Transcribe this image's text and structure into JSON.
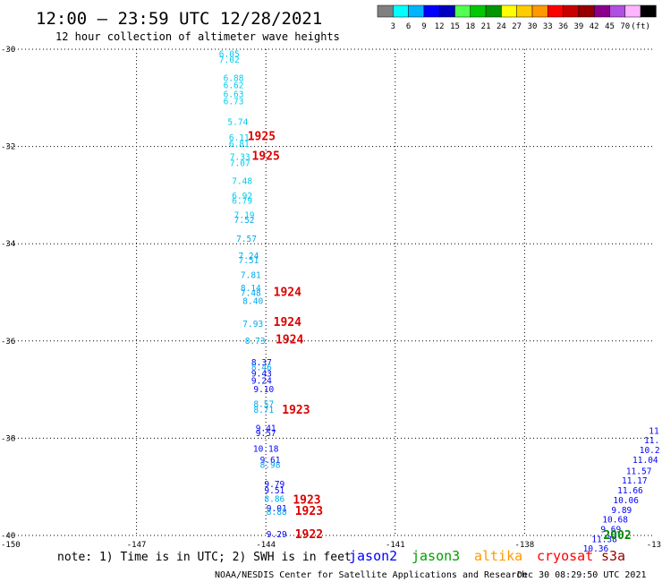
{
  "chart_data": {
    "type": "scatter",
    "title": "12:00 — 23:59 UTC 12/28/2021",
    "subtitle": "12 hour collection of altimeter wave heights",
    "xlim": [
      -150,
      -135
    ],
    "ylim": [
      -40,
      -30
    ],
    "x_ticks": [
      "-147",
      "-144",
      "-141",
      "-138"
    ],
    "x_edge_labels": [
      "-150",
      "-13"
    ],
    "y_ticks": [
      "-30",
      "-32",
      "-34",
      "-36",
      "-38",
      "-40"
    ],
    "grid": "dotted",
    "legend": {
      "colors": [
        "#808080",
        "#00ffff",
        "#00b4ff",
        "#0000ff",
        "#0000c0",
        "#50ff50",
        "#00c800",
        "#009600",
        "#ffff00",
        "#ffcc00",
        "#ff9900",
        "#ff0000",
        "#c80000",
        "#960000",
        "#8b008b",
        "#b050e0",
        "#ffb4ff",
        "#000000"
      ],
      "labels": [
        "3",
        "6",
        "9",
        "12",
        "15",
        "18",
        "21",
        "24",
        "27",
        "30",
        "33",
        "36",
        "39",
        "42",
        "45",
        "70",
        "(ft)"
      ]
    },
    "series": [
      {
        "name": "jason2",
        "color": "#0000ff"
      },
      {
        "name": "jason3",
        "color": "#00a000"
      },
      {
        "name": "altika",
        "color": "#ff9900"
      },
      {
        "name": "cryosat",
        "color": "#ff0000"
      },
      {
        "name": "s3a",
        "color": "#990000"
      }
    ],
    "points": [
      {
        "x": -144.85,
        "y": -30.1,
        "v": "6.05",
        "c": "#00ccee"
      },
      {
        "x": -144.85,
        "y": -30.22,
        "v": "7.02",
        "c": "#00ccee"
      },
      {
        "x": -144.75,
        "y": -30.6,
        "v": "6.88",
        "c": "#00ccee"
      },
      {
        "x": -144.75,
        "y": -30.75,
        "v": "6.62",
        "c": "#00ccee"
      },
      {
        "x": -144.75,
        "y": -30.93,
        "v": "6.63",
        "c": "#00ccee"
      },
      {
        "x": -144.75,
        "y": -31.08,
        "v": "6.73",
        "c": "#00ccee"
      },
      {
        "x": -144.65,
        "y": -31.5,
        "v": "5.74",
        "c": "#00ccee"
      },
      {
        "x": -144.62,
        "y": -31.82,
        "v": "6.11",
        "c": "#00ccee"
      },
      {
        "x": -144.62,
        "y": -31.95,
        "v": "6.81",
        "c": "#00ccee"
      },
      {
        "x": -144.6,
        "y": -32.22,
        "v": "7.33",
        "c": "#00ccee"
      },
      {
        "x": -144.6,
        "y": -32.35,
        "v": "7.07",
        "c": "#00ccee"
      },
      {
        "x": -144.55,
        "y": -32.72,
        "v": "7.48",
        "c": "#00ccee"
      },
      {
        "x": -144.55,
        "y": -33.02,
        "v": "6.92",
        "c": "#00ccee"
      },
      {
        "x": -144.55,
        "y": -33.12,
        "v": "6.79",
        "c": "#00ccee"
      },
      {
        "x": -144.5,
        "y": -33.42,
        "v": "7.19",
        "c": "#00ccee"
      },
      {
        "x": -144.5,
        "y": -33.52,
        "v": "7.52",
        "c": "#00aaee"
      },
      {
        "x": -144.45,
        "y": -33.9,
        "v": "7.57",
        "c": "#00aaee"
      },
      {
        "x": -144.4,
        "y": -34.25,
        "v": "7.24",
        "c": "#00aaee"
      },
      {
        "x": -144.4,
        "y": -34.35,
        "v": "7.51",
        "c": "#00aaee"
      },
      {
        "x": -144.35,
        "y": -34.65,
        "v": "7.81",
        "c": "#00aaee"
      },
      {
        "x": -144.35,
        "y": -34.92,
        "v": "8.14",
        "c": "#00aaee"
      },
      {
        "x": -144.35,
        "y": -35.02,
        "v": "7.48",
        "c": "#00aaee"
      },
      {
        "x": -144.3,
        "y": -35.18,
        "v": "8.40",
        "c": "#00aaee"
      },
      {
        "x": -144.3,
        "y": -35.65,
        "v": "7.93",
        "c": "#00aaee"
      },
      {
        "x": -144.25,
        "y": -36.0,
        "v": "8.73",
        "c": "#00aaee"
      },
      {
        "x": -144.1,
        "y": -36.45,
        "v": "8.37",
        "c": "#0000ff"
      },
      {
        "x": -144.1,
        "y": -36.55,
        "v": "8.46",
        "c": "#00aaee"
      },
      {
        "x": -144.1,
        "y": -36.68,
        "v": "9.43",
        "c": "#0000ff"
      },
      {
        "x": -144.1,
        "y": -36.82,
        "v": "9.24",
        "c": "#0000ff"
      },
      {
        "x": -144.05,
        "y": -37.0,
        "v": "9.10",
        "c": "#0000ff"
      },
      {
        "x": -144.05,
        "y": -37.3,
        "v": "8.57",
        "c": "#00aaee"
      },
      {
        "x": -144.05,
        "y": -37.42,
        "v": "8.71",
        "c": "#00aaee"
      },
      {
        "x": -144.0,
        "y": -37.8,
        "v": "9.41",
        "c": "#0000ff"
      },
      {
        "x": -144.0,
        "y": -37.9,
        "v": "9.57",
        "c": "#0000ff"
      },
      {
        "x": -144.0,
        "y": -38.22,
        "v": "10.18",
        "c": "#0000ff"
      },
      {
        "x": -143.9,
        "y": -38.45,
        "v": "9.61",
        "c": "#0000ff"
      },
      {
        "x": -143.9,
        "y": -38.55,
        "v": "8.98",
        "c": "#00aaee"
      },
      {
        "x": -143.8,
        "y": -38.95,
        "v": "9.79",
        "c": "#0000ff"
      },
      {
        "x": -143.8,
        "y": -39.08,
        "v": "9.51",
        "c": "#0000ff"
      },
      {
        "x": -143.8,
        "y": -39.25,
        "v": "8.86",
        "c": "#00aaee"
      },
      {
        "x": -143.75,
        "y": -39.45,
        "v": "9.01",
        "c": "#0000ff"
      },
      {
        "x": -143.75,
        "y": -39.52,
        "v": "8.88",
        "c": "#00aaee"
      },
      {
        "x": -143.75,
        "y": -39.98,
        "v": "9.29",
        "c": "#0000ff"
      },
      {
        "x": -135.0,
        "y": -37.85,
        "v": "11",
        "c": "#0000ff"
      },
      {
        "x": -135.05,
        "y": -38.05,
        "v": "11.",
        "c": "#0000ff"
      },
      {
        "x": -135.1,
        "y": -38.25,
        "v": "10.2",
        "c": "#0000ff"
      },
      {
        "x": -135.2,
        "y": -38.45,
        "v": "11.04",
        "c": "#0000ff"
      },
      {
        "x": -135.35,
        "y": -38.68,
        "v": "11.57",
        "c": "#0000ff"
      },
      {
        "x": -135.45,
        "y": -38.88,
        "v": "11.17",
        "c": "#0000ff"
      },
      {
        "x": -135.55,
        "y": -39.08,
        "v": "11.66",
        "c": "#0000ff"
      },
      {
        "x": -135.65,
        "y": -39.28,
        "v": "10.06",
        "c": "#0000ff"
      },
      {
        "x": -135.75,
        "y": -39.48,
        "v": "9.89",
        "c": "#0000ff"
      },
      {
        "x": -135.9,
        "y": -39.68,
        "v": "10.68",
        "c": "#0000ff"
      },
      {
        "x": -136.0,
        "y": -39.88,
        "v": "9.69",
        "c": "#0000ff"
      },
      {
        "x": -136.15,
        "y": -40.08,
        "v": "11.38",
        "c": "#0000ff"
      },
      {
        "x": -136.35,
        "y": -40.28,
        "v": "10.36",
        "c": "#0000ff"
      }
    ],
    "time_labels": [
      {
        "x": -144.1,
        "y": -31.8,
        "v": "1925",
        "c": "#dd0000"
      },
      {
        "x": -144.0,
        "y": -32.2,
        "v": "1925",
        "c": "#dd0000"
      },
      {
        "x": -143.5,
        "y": -35.0,
        "v": "1924",
        "c": "#dd0000"
      },
      {
        "x": -143.5,
        "y": -35.62,
        "v": "1924",
        "c": "#dd0000"
      },
      {
        "x": -143.45,
        "y": -35.98,
        "v": "1924",
        "c": "#dd0000"
      },
      {
        "x": -143.3,
        "y": -37.42,
        "v": "1923",
        "c": "#dd0000"
      },
      {
        "x": -143.05,
        "y": -39.27,
        "v": "1923",
        "c": "#dd0000"
      },
      {
        "x": -143.0,
        "y": -39.5,
        "v": "1923",
        "c": "#dd0000"
      },
      {
        "x": -143.0,
        "y": -39.98,
        "v": "1922",
        "c": "#dd0000"
      },
      {
        "x": -135.85,
        "y": -40.0,
        "v": "2002",
        "c": "#008800"
      }
    ]
  },
  "note": "note: 1) Time is in UTC; 2) SWH is in feet",
  "credit": "NOAA/NESDIS Center for Satellite Applications and Research",
  "timestamp": "Dec 30 08:29:50 UTC 2021"
}
